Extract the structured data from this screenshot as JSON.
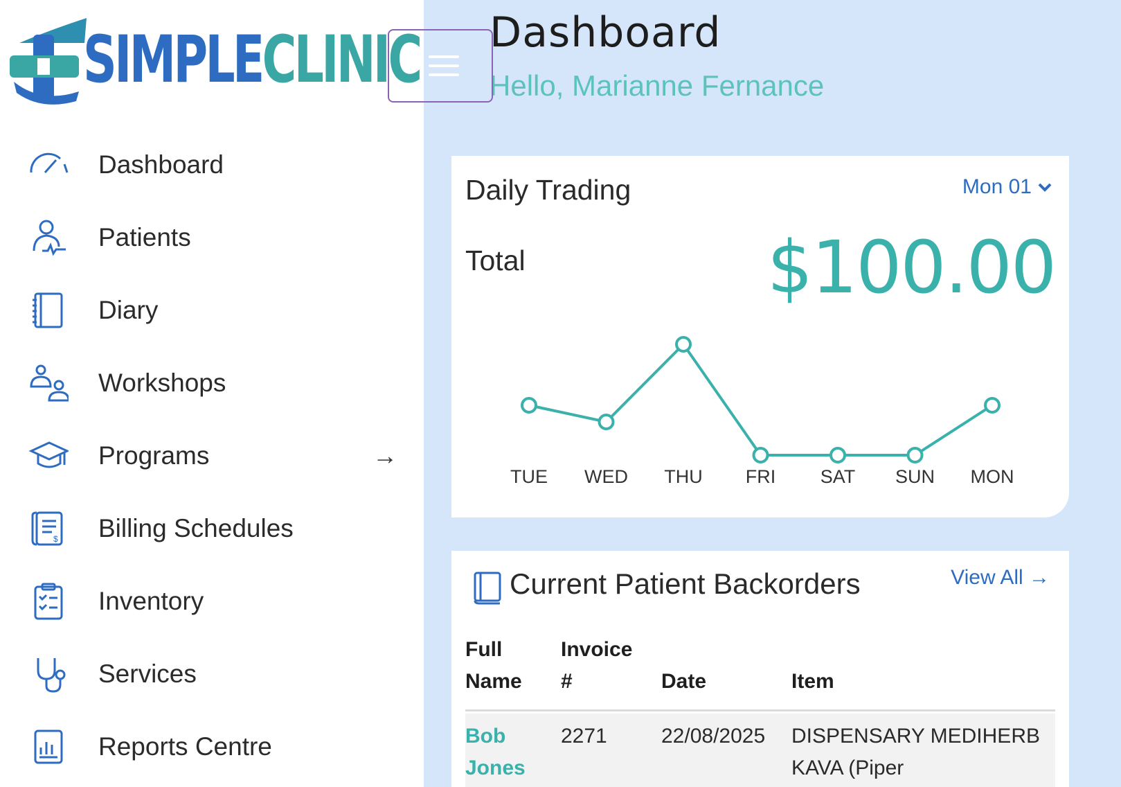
{
  "brand": {
    "part1": "SIMPLE",
    "part2": "CLINIC"
  },
  "header": {
    "title": "Dashboard",
    "greeting": "Hello, Marianne Fernance"
  },
  "sidebar": {
    "items": [
      {
        "label": "Dashboard",
        "icon": "gauge-icon"
      },
      {
        "label": "Patients",
        "icon": "patient-icon"
      },
      {
        "label": "Diary",
        "icon": "notebook-icon"
      },
      {
        "label": "Workshops",
        "icon": "group-icon"
      },
      {
        "label": "Programs",
        "icon": "graduation-cap-icon",
        "arrow": "→"
      },
      {
        "label": "Billing Schedules",
        "icon": "billing-icon"
      },
      {
        "label": "Inventory",
        "icon": "clipboard-icon"
      },
      {
        "label": "Services",
        "icon": "stethoscope-icon"
      },
      {
        "label": "Reports Centre",
        "icon": "report-icon"
      }
    ]
  },
  "trading": {
    "title": "Daily Trading",
    "date_selector": "Mon 01",
    "total_label": "Total",
    "total_value": "$100.00"
  },
  "chart_data": {
    "type": "line",
    "title": "Daily Trading",
    "categories": [
      "TUE",
      "WED",
      "THU",
      "FRI",
      "SAT",
      "SUN",
      "MON"
    ],
    "series": [
      {
        "values": [
          45,
          30,
          100,
          0,
          0,
          0,
          45
        ]
      }
    ],
    "ylim": [
      0,
      100
    ],
    "grid": false,
    "color": "#3ab1ab"
  },
  "backorders": {
    "title": "Current Patient Backorders",
    "view_all": "View All →",
    "columns": [
      {
        "line1": "Full",
        "line2": "Name"
      },
      {
        "line1": "Invoice",
        "line2": "#"
      },
      {
        "line1": "",
        "line2": "Date"
      },
      {
        "line1": "",
        "line2": "Item"
      }
    ],
    "rows": [
      {
        "name_line1": "Bob",
        "name_line2": "Jones",
        "invoice": "2271",
        "date": "22/08/2025",
        "item_line1": "DISPENSARY MEDIHERB",
        "item_line2": "KAVA (Piper"
      }
    ]
  },
  "colors": {
    "accent": "#3ab1ab",
    "brand_blue": "#2d6cc0",
    "background": "#d6e6fa"
  }
}
